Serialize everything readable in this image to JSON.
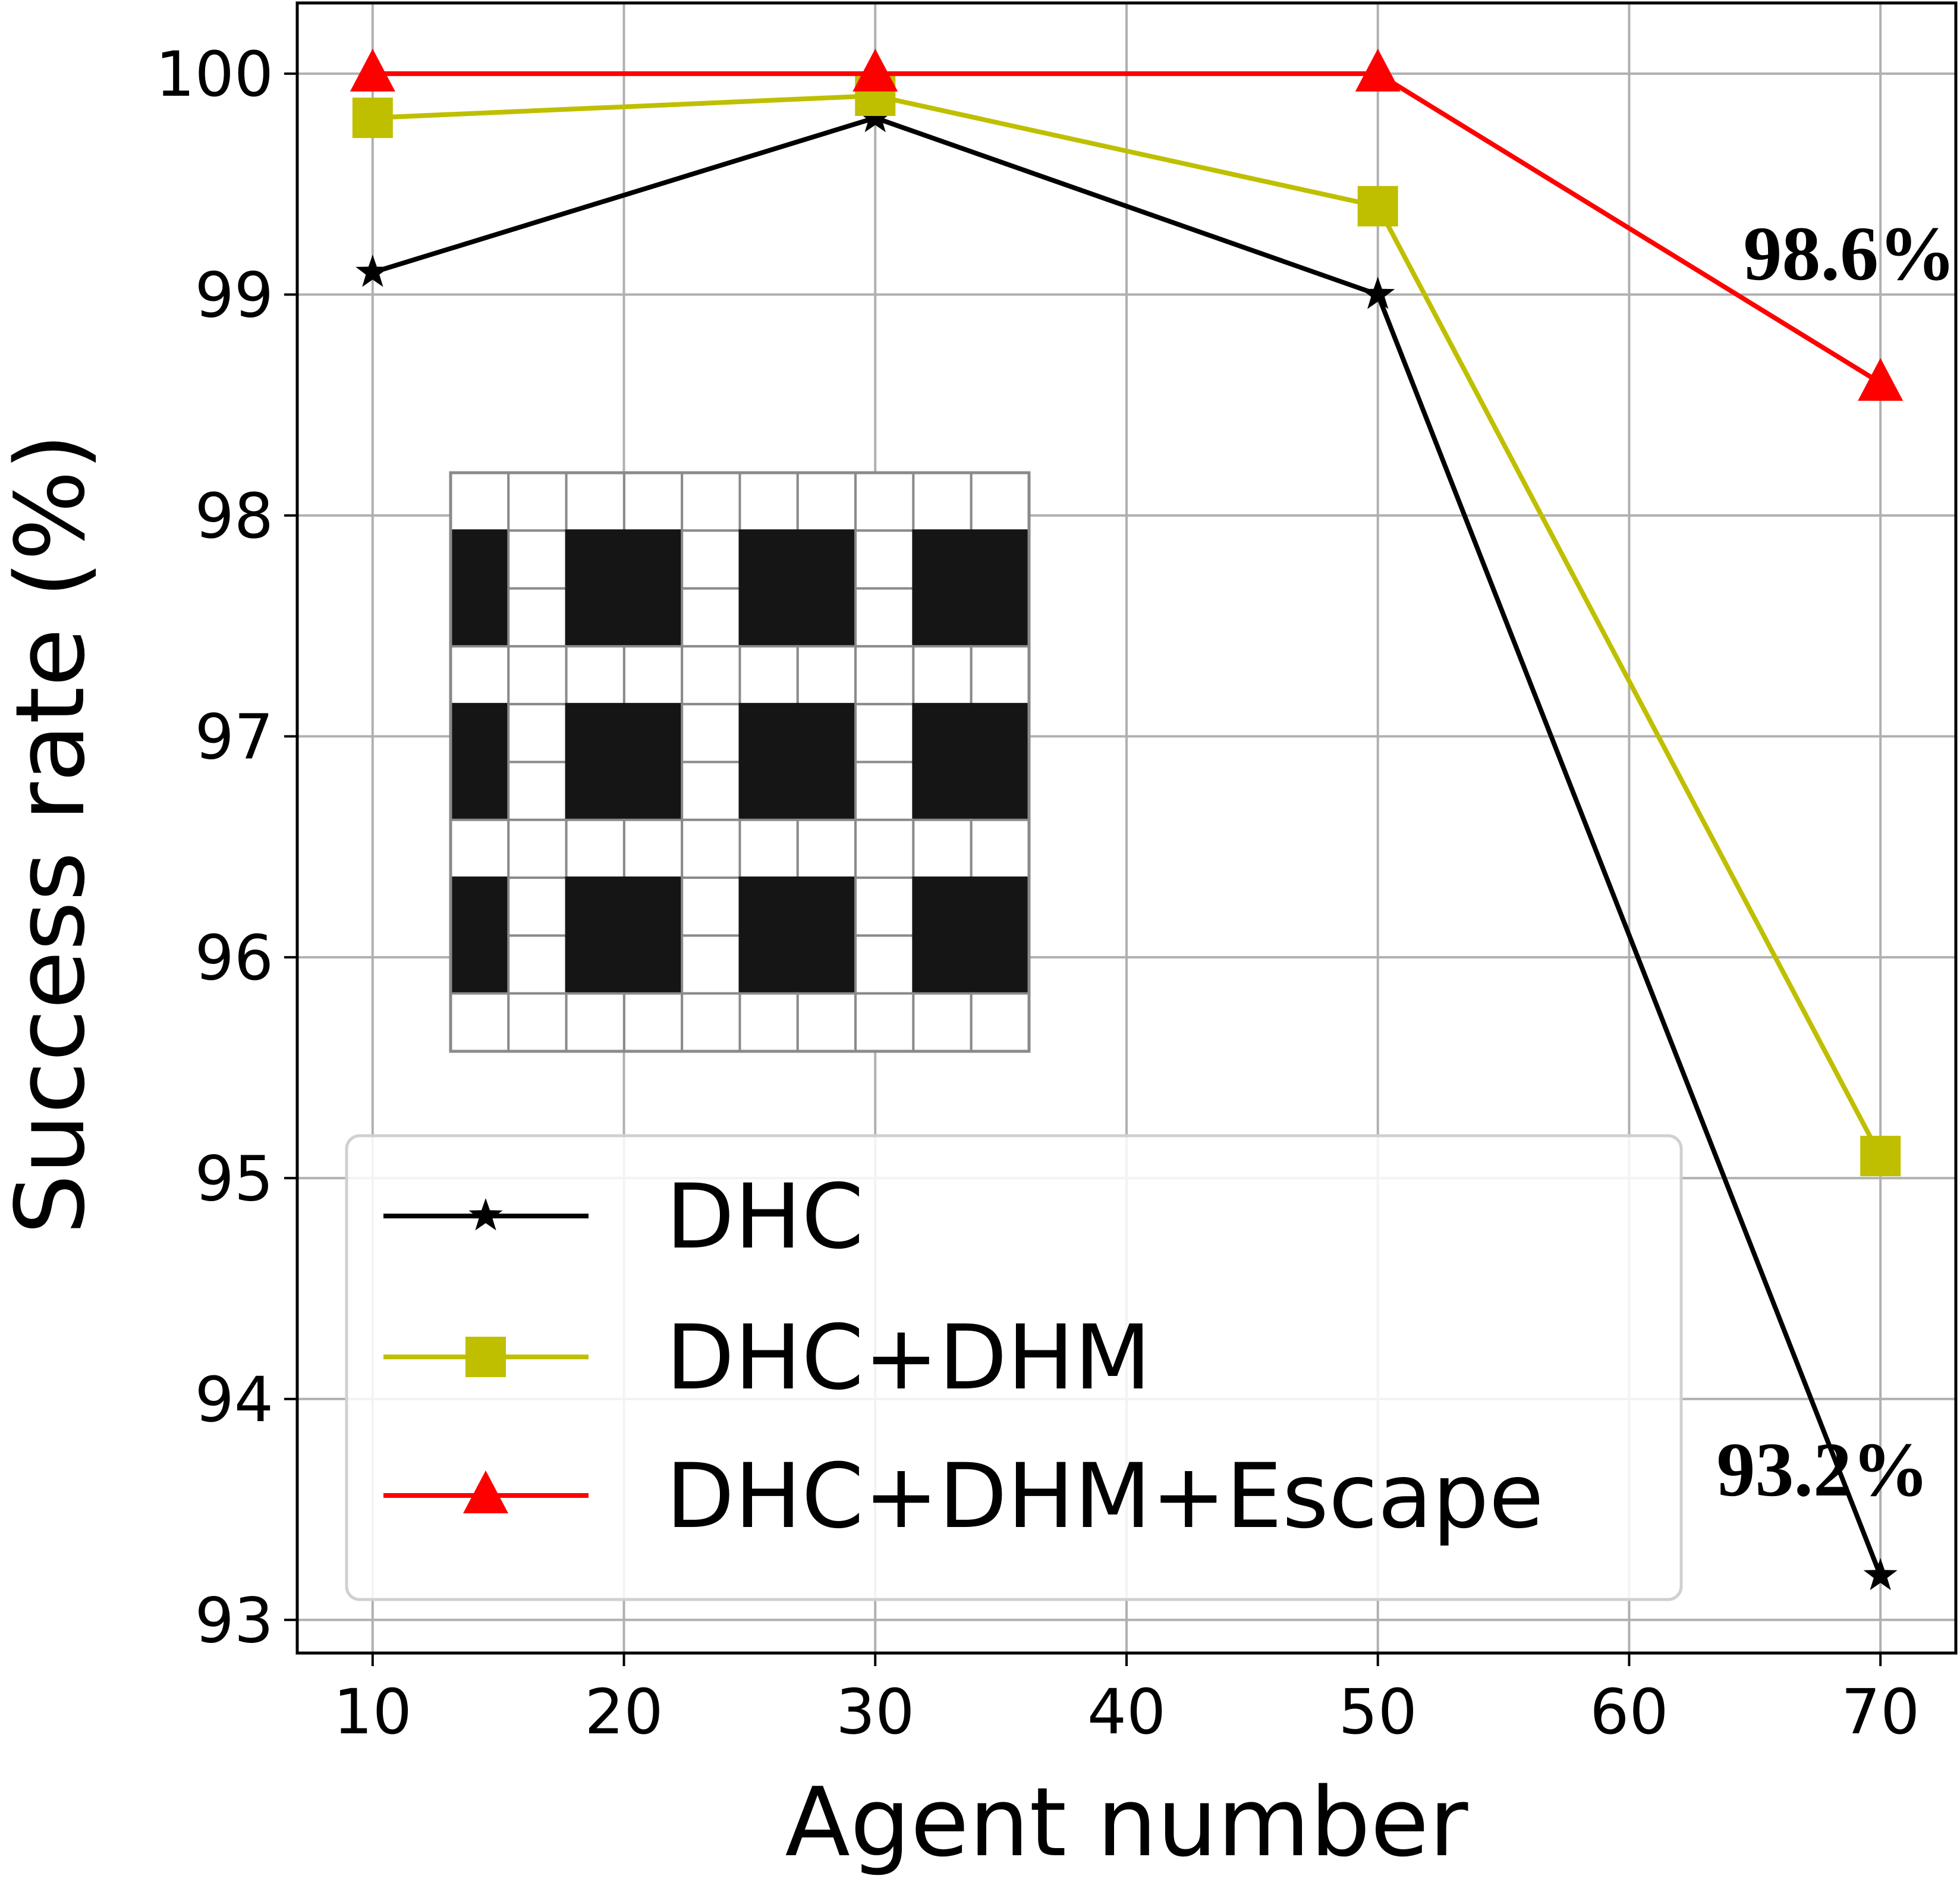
{
  "chart_data": {
    "type": "line",
    "title": "",
    "xlabel": "Agent number",
    "ylabel": "Success rate (%)",
    "x": [
      10,
      30,
      50,
      70
    ],
    "xlim": [
      7,
      73
    ],
    "ylim": [
      92.85,
      100.32
    ],
    "xticks": [
      10,
      20,
      30,
      40,
      50,
      60,
      70
    ],
    "yticks": [
      93,
      94,
      95,
      96,
      97,
      98,
      99,
      100
    ],
    "grid": true,
    "legend_position": "lower-left",
    "series": [
      {
        "name": "DHC",
        "values": [
          99.1,
          99.8,
          99.0,
          93.2
        ],
        "color": "#000000",
        "marker": "star"
      },
      {
        "name": "DHC+DHM",
        "values": [
          99.8,
          99.9,
          99.4,
          95.1
        ],
        "color": "#bfbf00",
        "marker": "square"
      },
      {
        "name": "DHC+DHM+Escape",
        "values": [
          100.0,
          100.0,
          100.0,
          98.6
        ],
        "color": "#ff0000",
        "marker": "triangle"
      }
    ],
    "annotations": [
      {
        "text": "98.6%",
        "x": 70,
        "y": 98.6
      },
      {
        "text": "93.2%",
        "x": 70,
        "y": 93.2
      }
    ],
    "inset": {
      "description_icon": "grid-map-inset",
      "rows": 10,
      "cols": 10,
      "obstacle_color": "#151515",
      "free_color": "#ffffff"
    }
  }
}
